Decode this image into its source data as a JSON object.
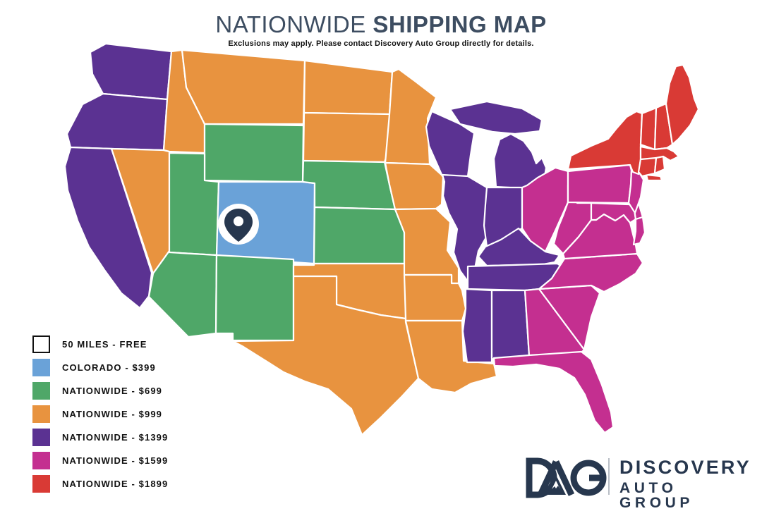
{
  "header": {
    "title_light": "NATIONWIDE",
    "title_bold": " SHIPPING MAP",
    "subtitle": "Exclusions may apply. Please contact Discovery Auto Group directly for details."
  },
  "colors": {
    "brand_navy": "#27374e",
    "title_text": "#3d4d61",
    "swatch_border": "#111111",
    "state_border": "#ffffff"
  },
  "map": {
    "tiers": [
      {
        "label": "50 MILES - FREE",
        "color": "#ffffff",
        "swatch_border": true,
        "states": []
      },
      {
        "label": "COLORADO - $399",
        "color": "#6aa2d8",
        "swatch_border": false,
        "states": [
          "CO"
        ]
      },
      {
        "label": "NATIONWIDE - $699",
        "color": "#4fa768",
        "swatch_border": false,
        "states": [
          "WY",
          "UT",
          "NE",
          "KS",
          "AZ",
          "NM"
        ]
      },
      {
        "label": "NATIONWIDE - $999",
        "color": "#e8933f",
        "swatch_border": false,
        "states": [
          "MT",
          "ID",
          "NV",
          "ND",
          "SD",
          "MN",
          "IA",
          "MO",
          "OK",
          "TX",
          "AR",
          "LA"
        ]
      },
      {
        "label": "NATIONWIDE - $1399",
        "color": "#5b3292",
        "swatch_border": false,
        "states": [
          "WA",
          "OR",
          "CA",
          "WI",
          "MI_UP",
          "MI",
          "IL",
          "IN",
          "KY",
          "TN",
          "MS",
          "AL"
        ]
      },
      {
        "label": "NATIONWIDE - $1599",
        "color": "#c42f90",
        "swatch_border": false,
        "states": [
          "OH",
          "PA",
          "NJ",
          "DE",
          "MD",
          "DELMARVA",
          "WV",
          "VA",
          "NC",
          "SC",
          "GA",
          "FL"
        ]
      },
      {
        "label": "NATIONWIDE - $1899",
        "color": "#d93a35",
        "swatch_border": false,
        "states": [
          "NY",
          "LI",
          "VT",
          "NH",
          "ME",
          "MA",
          "CT",
          "RI"
        ]
      }
    ]
  },
  "logo": {
    "mark": "DAG",
    "line1": "DISCOVERY",
    "line2": "AUTO GROUP"
  }
}
